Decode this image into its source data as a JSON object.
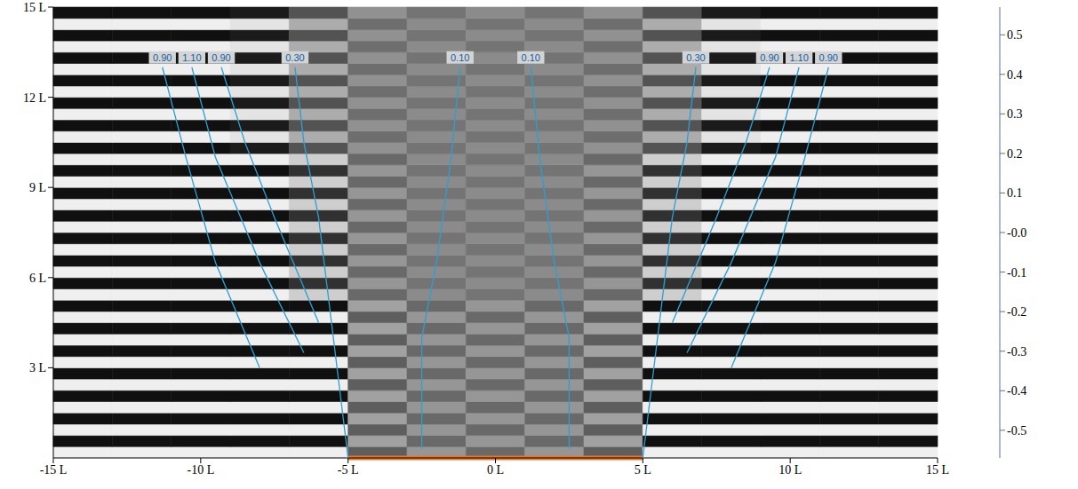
{
  "chart_data": {
    "type": "heatmap",
    "xlim": [
      -15,
      15
    ],
    "xticks": [
      {
        "value": -15,
        "label": "-15 L"
      },
      {
        "value": -10,
        "label": "-10 L"
      },
      {
        "value": -5,
        "label": "-5 L"
      },
      {
        "value": 0,
        "label": "0 L"
      },
      {
        "value": 5,
        "label": "5 L"
      },
      {
        "value": 10,
        "label": "10 L"
      },
      {
        "value": 15,
        "label": "15 L"
      }
    ],
    "ylim": [
      0,
      15
    ],
    "yticks": [
      {
        "value": 3,
        "label": "3 L"
      },
      {
        "value": 6,
        "label": "6 L"
      },
      {
        "value": 9,
        "label": "9 L"
      },
      {
        "value": 12,
        "label": "12 L"
      },
      {
        "value": 15,
        "label": "15 L"
      }
    ],
    "x": [
      -14,
      -12,
      -10,
      -8,
      -6,
      -4,
      -2,
      0,
      2,
      4,
      6,
      8,
      10,
      12,
      14
    ],
    "y": [
      0.1875,
      0.5625,
      0.9375,
      1.3125,
      1.6875,
      2.0625,
      2.4375,
      2.8125,
      3.1875,
      3.5625,
      3.9375,
      4.3125,
      4.6875,
      5.0625,
      5.4375,
      5.8125,
      6.1875,
      6.5625,
      6.9375,
      7.3125,
      7.6875,
      8.0625,
      8.4375,
      8.8125,
      9.1875,
      9.5625,
      9.9375,
      10.3125,
      10.6875,
      11.0625,
      11.4375,
      11.8125,
      12.1875,
      12.5625,
      12.9375,
      13.3125,
      13.6875,
      14.0625,
      14.4375,
      14.8125
    ],
    "z": [
      [
        0.5,
        0.5,
        0.5,
        0.5,
        0.5,
        -0.15,
        0.1,
        -0.1,
        0.1,
        -0.15,
        0.5,
        0.5,
        0.5,
        0.5,
        0.5
      ],
      [
        -0.5,
        -0.5,
        -0.5,
        -0.5,
        -0.5,
        0.15,
        -0.1,
        0.1,
        -0.1,
        0.15,
        -0.5,
        -0.5,
        -0.5,
        -0.5,
        -0.5
      ],
      [
        0.5,
        0.5,
        0.5,
        0.5,
        0.5,
        -0.15,
        0.1,
        -0.1,
        0.1,
        -0.15,
        0.5,
        0.5,
        0.5,
        0.5,
        0.5
      ],
      [
        -0.5,
        -0.5,
        -0.5,
        -0.5,
        -0.5,
        0.15,
        -0.1,
        0.1,
        -0.1,
        0.15,
        -0.5,
        -0.5,
        -0.5,
        -0.5,
        -0.5
      ],
      [
        0.5,
        0.5,
        0.5,
        0.5,
        0.5,
        -0.15,
        0.1,
        -0.1,
        0.1,
        -0.15,
        0.5,
        0.5,
        0.5,
        0.5,
        0.5
      ],
      [
        -0.5,
        -0.5,
        -0.5,
        -0.5,
        -0.5,
        0.15,
        -0.1,
        0.1,
        -0.1,
        0.15,
        -0.5,
        -0.5,
        -0.5,
        -0.5,
        -0.5
      ],
      [
        0.5,
        0.5,
        0.5,
        0.5,
        0.5,
        -0.15,
        0.1,
        -0.1,
        0.1,
        -0.15,
        0.5,
        0.5,
        0.5,
        0.5,
        0.5
      ],
      [
        -0.5,
        -0.5,
        -0.5,
        -0.5,
        -0.5,
        0.15,
        -0.1,
        0.1,
        -0.1,
        0.15,
        -0.5,
        -0.5,
        -0.5,
        -0.5,
        -0.5
      ],
      [
        0.5,
        0.5,
        0.5,
        0.5,
        0.5,
        -0.15,
        0.1,
        -0.1,
        0.1,
        -0.15,
        0.5,
        0.5,
        0.5,
        0.5,
        0.5
      ],
      [
        -0.5,
        -0.5,
        -0.5,
        -0.5,
        -0.5,
        0.15,
        -0.1,
        0.1,
        -0.1,
        0.15,
        -0.5,
        -0.5,
        -0.5,
        -0.5,
        -0.5
      ],
      [
        0.5,
        0.5,
        0.5,
        0.5,
        0.5,
        -0.15,
        0.1,
        -0.1,
        0.1,
        -0.15,
        0.5,
        0.5,
        0.5,
        0.5,
        0.5
      ],
      [
        -0.5,
        -0.5,
        -0.5,
        -0.5,
        -0.5,
        0.15,
        -0.1,
        0.1,
        -0.1,
        0.15,
        -0.5,
        -0.5,
        -0.5,
        -0.5,
        -0.5
      ],
      [
        0.5,
        0.5,
        0.5,
        0.5,
        0.5,
        -0.15,
        0.1,
        -0.1,
        0.1,
        -0.15,
        0.5,
        0.5,
        0.5,
        0.5,
        0.5
      ],
      [
        -0.5,
        -0.5,
        -0.5,
        -0.5,
        -0.5,
        0.15,
        -0.1,
        0.1,
        -0.1,
        0.15,
        -0.5,
        -0.5,
        -0.5,
        -0.5,
        -0.5
      ],
      [
        0.5,
        0.5,
        0.5,
        0.5,
        0.35,
        -0.1,
        0.05,
        -0.05,
        0.05,
        -0.1,
        0.35,
        0.5,
        0.5,
        0.5,
        0.5
      ],
      [
        -0.5,
        -0.5,
        -0.5,
        -0.5,
        -0.35,
        0.1,
        -0.05,
        0.05,
        -0.05,
        0.1,
        -0.35,
        -0.5,
        -0.5,
        -0.5,
        -0.5
      ],
      [
        0.5,
        0.5,
        0.5,
        0.5,
        0.35,
        -0.1,
        0.05,
        -0.05,
        0.05,
        -0.1,
        0.35,
        0.5,
        0.5,
        0.5,
        0.5
      ],
      [
        -0.5,
        -0.5,
        -0.5,
        -0.5,
        -0.35,
        0.1,
        -0.05,
        0.05,
        -0.05,
        0.1,
        -0.35,
        -0.5,
        -0.5,
        -0.5,
        -0.5
      ],
      [
        0.5,
        0.5,
        0.5,
        0.5,
        0.35,
        -0.1,
        0.05,
        -0.05,
        0.05,
        -0.1,
        0.35,
        0.5,
        0.5,
        0.5,
        0.5
      ],
      [
        -0.5,
        -0.5,
        -0.5,
        -0.5,
        -0.35,
        0.1,
        -0.05,
        0.05,
        -0.05,
        0.1,
        -0.35,
        -0.5,
        -0.5,
        -0.5,
        -0.5
      ],
      [
        0.5,
        0.5,
        0.5,
        0.5,
        0.35,
        -0.1,
        0.05,
        -0.05,
        0.05,
        -0.1,
        0.35,
        0.5,
        0.5,
        0.5,
        0.5
      ],
      [
        -0.5,
        -0.5,
        -0.5,
        -0.5,
        -0.35,
        0.1,
        -0.05,
        0.05,
        -0.05,
        0.1,
        -0.35,
        -0.5,
        -0.5,
        -0.5,
        -0.5
      ],
      [
        0.5,
        0.5,
        0.5,
        0.5,
        0.35,
        -0.1,
        0.05,
        -0.05,
        0.05,
        -0.1,
        0.35,
        0.5,
        0.5,
        0.5,
        0.5
      ],
      [
        -0.5,
        -0.5,
        -0.5,
        -0.5,
        -0.35,
        0.1,
        -0.05,
        0.05,
        -0.05,
        0.1,
        -0.35,
        -0.5,
        -0.5,
        -0.5,
        -0.5
      ],
      [
        0.5,
        0.5,
        0.5,
        0.5,
        0.35,
        -0.1,
        0.05,
        -0.05,
        0.05,
        -0.1,
        0.35,
        0.5,
        0.5,
        0.5,
        0.5
      ],
      [
        -0.5,
        -0.5,
        -0.5,
        -0.5,
        -0.35,
        0.1,
        -0.05,
        0.05,
        -0.05,
        0.1,
        -0.35,
        -0.5,
        -0.5,
        -0.5,
        -0.5
      ],
      [
        0.5,
        0.5,
        0.5,
        0.5,
        0.35,
        -0.1,
        0.05,
        -0.05,
        0.05,
        -0.1,
        0.35,
        0.5,
        0.5,
        0.5,
        0.5
      ],
      [
        -0.5,
        -0.5,
        -0.5,
        -0.45,
        -0.2,
        0.08,
        -0.05,
        0.05,
        -0.05,
        0.08,
        -0.2,
        -0.45,
        -0.5,
        -0.5,
        -0.5
      ],
      [
        0.5,
        0.5,
        0.5,
        0.45,
        0.2,
        -0.08,
        0.05,
        -0.05,
        0.05,
        -0.08,
        0.2,
        0.45,
        0.5,
        0.5,
        0.5
      ],
      [
        -0.5,
        -0.5,
        -0.5,
        -0.45,
        -0.2,
        0.08,
        -0.05,
        0.05,
        -0.05,
        0.08,
        -0.2,
        -0.45,
        -0.5,
        -0.5,
        -0.5
      ],
      [
        0.5,
        0.5,
        0.5,
        0.45,
        0.2,
        -0.08,
        0.05,
        -0.05,
        0.05,
        -0.08,
        0.2,
        0.45,
        0.5,
        0.5,
        0.5
      ],
      [
        -0.5,
        -0.5,
        -0.5,
        -0.45,
        -0.2,
        0.08,
        -0.05,
        0.05,
        -0.05,
        0.08,
        -0.2,
        -0.45,
        -0.5,
        -0.5,
        -0.5
      ],
      [
        0.5,
        0.5,
        0.5,
        0.45,
        0.2,
        -0.08,
        0.05,
        -0.05,
        0.05,
        -0.08,
        0.2,
        0.45,
        0.5,
        0.5,
        0.5
      ],
      [
        -0.5,
        -0.5,
        -0.5,
        -0.45,
        -0.2,
        0.08,
        -0.05,
        0.05,
        -0.05,
        0.08,
        -0.2,
        -0.45,
        -0.5,
        -0.5,
        -0.5
      ],
      [
        0.5,
        0.5,
        0.5,
        0.45,
        0.2,
        -0.08,
        0.05,
        -0.05,
        0.05,
        -0.08,
        0.2,
        0.45,
        0.5,
        0.5,
        0.5
      ],
      [
        -0.5,
        -0.5,
        -0.5,
        -0.45,
        -0.2,
        0.08,
        -0.05,
        0.05,
        -0.05,
        0.08,
        -0.2,
        -0.45,
        -0.5,
        -0.5,
        -0.5
      ],
      [
        0.5,
        0.5,
        0.5,
        0.45,
        0.2,
        -0.08,
        0.05,
        -0.05,
        0.05,
        -0.08,
        0.2,
        0.45,
        0.5,
        0.5,
        0.5
      ],
      [
        -0.5,
        -0.5,
        -0.5,
        -0.45,
        -0.2,
        0.08,
        -0.05,
        0.05,
        -0.05,
        0.08,
        -0.2,
        -0.45,
        -0.5,
        -0.5,
        -0.5
      ],
      [
        0.5,
        0.5,
        0.5,
        0.45,
        0.2,
        -0.08,
        0.05,
        -0.05,
        0.05,
        -0.08,
        0.2,
        0.45,
        0.5,
        0.5,
        0.5
      ],
      [
        -0.5,
        -0.5,
        -0.5,
        -0.45,
        -0.2,
        0.08,
        -0.05,
        0.05,
        -0.05,
        0.08,
        -0.2,
        -0.45,
        -0.5,
        -0.5,
        -0.5
      ]
    ],
    "clim": [
      -0.57,
      0.57
    ],
    "cticks": [
      0.5,
      0.4,
      0.3,
      0.2,
      0.1,
      {
        "value": 0,
        "label": "-0.0"
      },
      -0.1,
      -0.2,
      -0.3,
      -0.4,
      -0.5
    ],
    "contours": [
      {
        "value": 0.9,
        "label": "0.90",
        "color": "#2e9fd0",
        "points": [
          [
            -8,
            3
          ],
          [
            -9.5,
            6.5
          ],
          [
            -10.5,
            10
          ],
          [
            -11.3,
            13
          ]
        ]
      },
      {
        "value": 1.1,
        "label": "1.10",
        "color": "#2e9fd0",
        "points": [
          [
            -6.5,
            3.5
          ],
          [
            -8,
            6.5
          ],
          [
            -9.5,
            10
          ],
          [
            -10.3,
            13
          ]
        ]
      },
      {
        "value": 0.9,
        "label": "0.90",
        "color": "#2e9fd0",
        "points": [
          [
            -6,
            4.5
          ],
          [
            -7.5,
            8
          ],
          [
            -8.5,
            10.5
          ],
          [
            -9.3,
            13
          ]
        ]
      },
      {
        "value": 0.3,
        "label": "0.30",
        "color": "#2e9fd0",
        "points": [
          [
            -5,
            0
          ],
          [
            -5.5,
            4
          ],
          [
            -6,
            8
          ],
          [
            -6.5,
            10.5
          ],
          [
            -6.8,
            13
          ]
        ]
      },
      {
        "value": 0.1,
        "label": "0.10",
        "color": "#2e9fd0",
        "points": [
          [
            -2.5,
            0.3
          ],
          [
            -2.5,
            4
          ],
          [
            -2,
            6.5
          ],
          [
            -1.5,
            10
          ],
          [
            -1.2,
            13
          ]
        ]
      },
      {
        "value": 0.1,
        "label": "0.10",
        "color": "#2e9fd0",
        "points": [
          [
            2.5,
            0.3
          ],
          [
            2.5,
            4
          ],
          [
            2,
            6.5
          ],
          [
            1.5,
            10
          ],
          [
            1.2,
            13
          ]
        ]
      },
      {
        "value": 0.3,
        "label": "0.30",
        "color": "#2e9fd0",
        "points": [
          [
            5,
            0
          ],
          [
            5.5,
            4
          ],
          [
            6,
            8
          ],
          [
            6.5,
            10.5
          ],
          [
            6.8,
            13
          ]
        ]
      },
      {
        "value": 0.9,
        "label": "0.90",
        "color": "#2e9fd0",
        "points": [
          [
            6,
            4.5
          ],
          [
            7.5,
            8
          ],
          [
            8.5,
            10.5
          ],
          [
            9.3,
            13
          ]
        ]
      },
      {
        "value": 1.1,
        "label": "1.10",
        "color": "#2e9fd0",
        "points": [
          [
            6.5,
            3.5
          ],
          [
            8,
            6.5
          ],
          [
            9.5,
            10
          ],
          [
            10.3,
            13
          ]
        ]
      },
      {
        "value": 0.9,
        "label": "0.90",
        "color": "#2e9fd0",
        "points": [
          [
            8,
            3
          ],
          [
            9.5,
            6.5
          ],
          [
            10.5,
            10
          ],
          [
            11.3,
            13
          ]
        ]
      }
    ],
    "barrier": {
      "x": [
        -5,
        5
      ],
      "color": "#e8772e"
    }
  }
}
